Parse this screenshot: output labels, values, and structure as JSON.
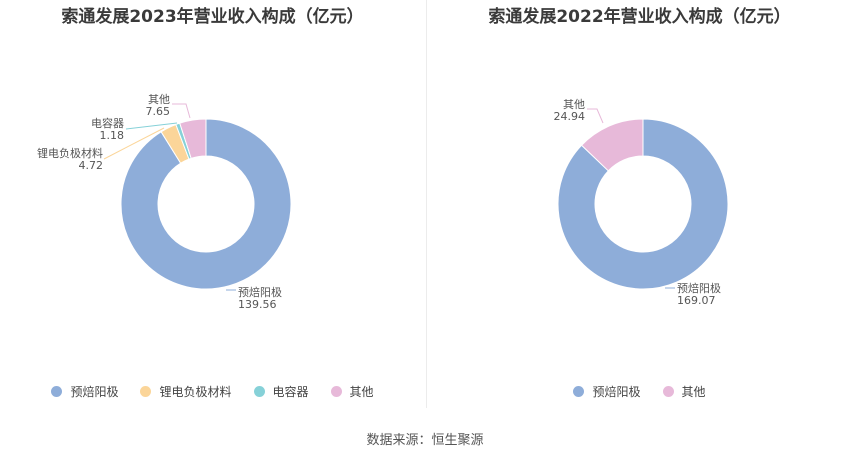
{
  "charts": [
    {
      "title": "索通发展2023年营业收入构成（亿元）",
      "chart_data": {
        "type": "pie",
        "categories": [
          "预焙阳极",
          "锂电负极材料",
          "电容器",
          "其他"
        ],
        "values": [
          139.56,
          4.72,
          1.18,
          7.65
        ],
        "value_labels": [
          "139.56",
          "4.72",
          "1.18",
          "7.65"
        ],
        "donut": true,
        "legend": "bottom"
      }
    },
    {
      "title": "索通发展2022年营业收入构成（亿元）",
      "chart_data": {
        "type": "pie",
        "categories": [
          "预焙阳极",
          "其他"
        ],
        "values": [
          169.07,
          24.94
        ],
        "value_labels": [
          "169.07",
          "24.94"
        ],
        "donut": true,
        "legend": "bottom"
      }
    }
  ],
  "colors": {
    "预焙阳极": "#8eadd9",
    "锂电负极材料": "#fbd599",
    "电容器": "#86d1d8",
    "其他": "#e7b9d9"
  },
  "source": "数据来源：恒生聚源"
}
